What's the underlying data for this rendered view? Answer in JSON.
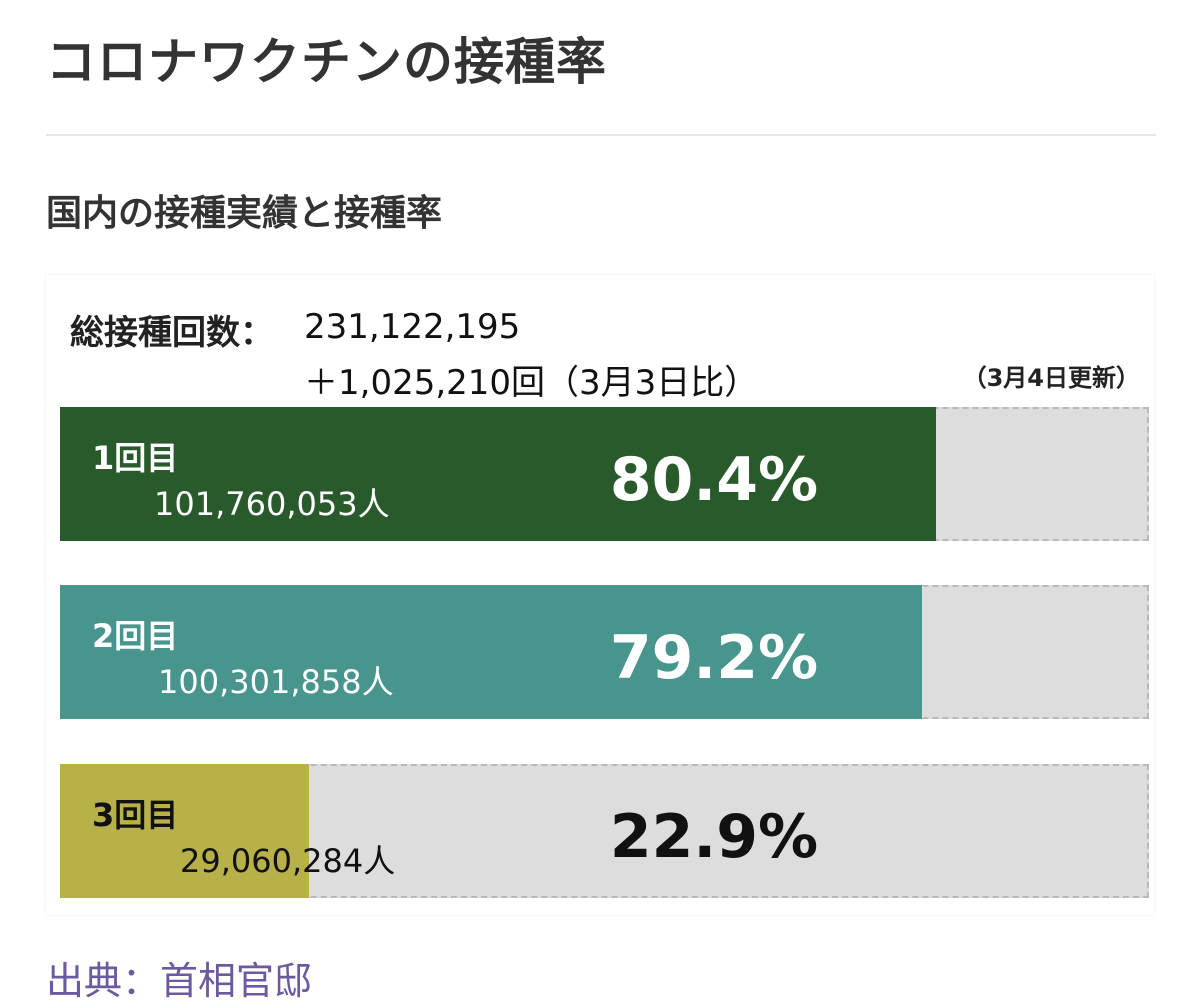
{
  "page": {
    "title": "コロナワクチンの接種率",
    "section_title": "国内の接種実績と接種率",
    "source": "出典：首相官邸"
  },
  "chart_data": {
    "type": "bar",
    "orientation": "horizontal",
    "total_label": "総接種回数：",
    "total_value": "231,122,195",
    "total_diff": "＋1,025,210回（3月3日比）",
    "updated": "（3月4日更新）",
    "categories": [
      "1回目",
      "2回目",
      "3回目"
    ],
    "counts": [
      "101,760,053人",
      "100,301,858人",
      "29,060,284人"
    ],
    "values": [
      80.4,
      79.2,
      22.9
    ],
    "value_labels": [
      "80.4%",
      "79.2%",
      "22.9%"
    ],
    "unit": "%",
    "xlim": [
      0,
      100
    ],
    "colors": [
      "#285a2b",
      "#47958c",
      "#b8b049"
    ],
    "track_color": "#dddddd"
  }
}
